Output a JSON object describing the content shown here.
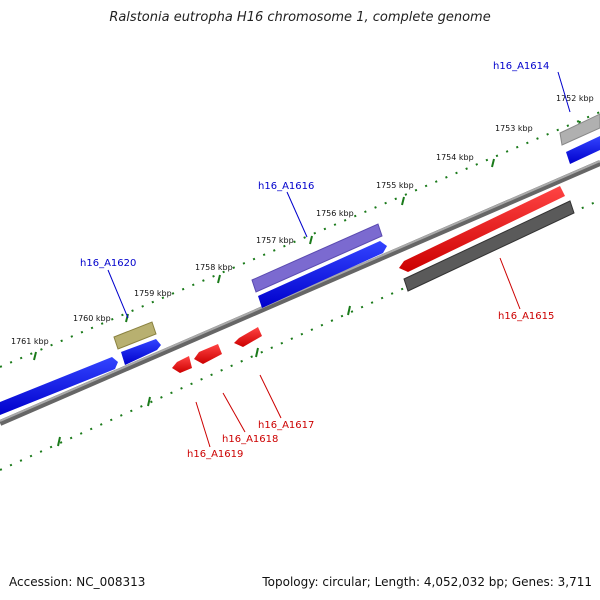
{
  "header": {
    "title": "Ralstonia eutropha H16 chromosome 1, complete genome"
  },
  "footer": {
    "accession": "Accession: NC_008313",
    "summary": "Topology: circular; Length: 4,052,032 bp; Genes: 3,711"
  },
  "kbp_labels": [
    "1752 kbp",
    "1753 kbp",
    "1754 kbp",
    "1755 kbp",
    "1756 kbp",
    "1757 kbp",
    "1758 kbp",
    "1759 kbp",
    "1760 kbp",
    "1761 kbp"
  ],
  "genes": [
    {
      "id": "h16_A1614",
      "label_color": "#0000cc",
      "fill": "#b0b0b0"
    },
    {
      "id": "h16_A1615",
      "label_color": "#cc0000",
      "fill": "#5a5a5a"
    },
    {
      "id": "h16_A1616",
      "label_color": "#0000cc",
      "fill": "#7b6ad0"
    },
    {
      "id": "h16_A1617",
      "label_color": "#cc0000",
      "fill": "#ee0000"
    },
    {
      "id": "h16_A1618",
      "label_color": "#cc0000",
      "fill": "#ee0000"
    },
    {
      "id": "h16_A1619",
      "label_color": "#cc0000",
      "fill": "#ee0000"
    },
    {
      "id": "h16_A1620",
      "label_color": "#0000cc",
      "fill": "#b8b070"
    }
  ],
  "colors": {
    "forward_cds": "#0000ee",
    "reverse_cds": "#ee0000",
    "backbone": "#888888",
    "tick_marks": "#1a7a1a"
  }
}
